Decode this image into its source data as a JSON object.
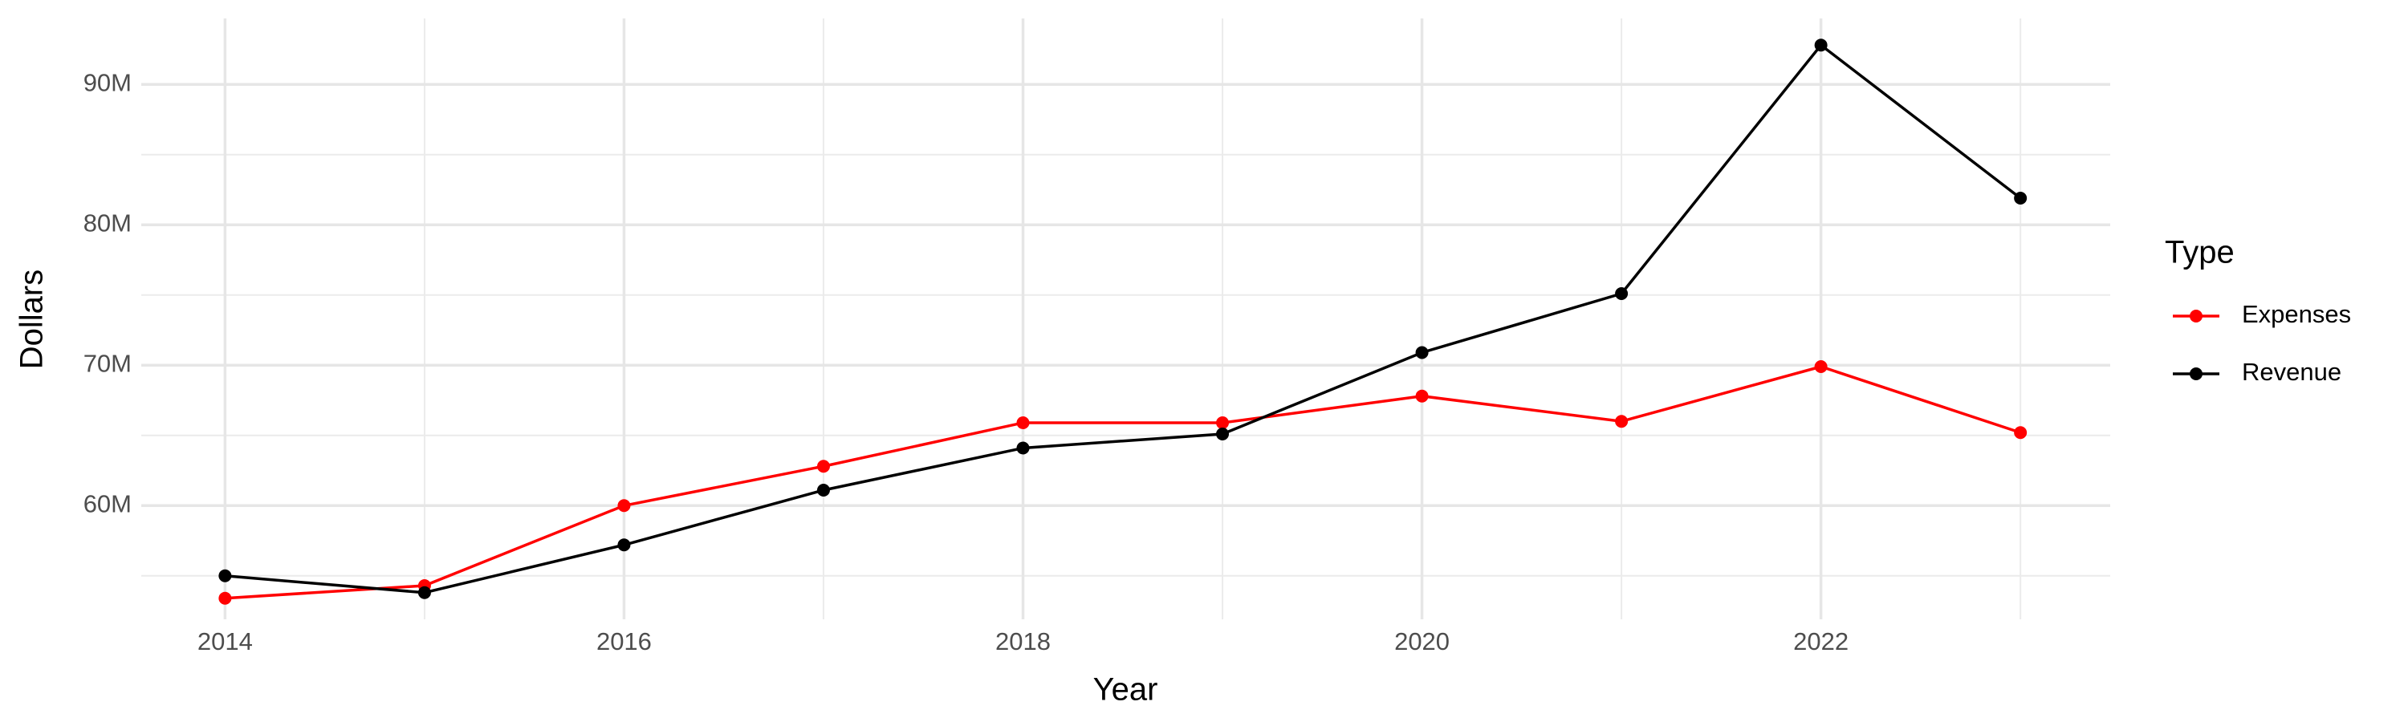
{
  "chart_data": {
    "type": "line",
    "x_label": "Year",
    "y_label": "Dollars",
    "x": [
      2014,
      2015,
      2016,
      2017,
      2018,
      2019,
      2020,
      2021,
      2022,
      2023
    ],
    "series": [
      {
        "name": "Expenses",
        "color": "#ff0000",
        "values": [
          53400000,
          54300000,
          60000000,
          62800000,
          65900000,
          65900000,
          67800000,
          66000000,
          69900000,
          65200000
        ]
      },
      {
        "name": "Revenue",
        "color": "#000000",
        "values": [
          55000000,
          53800000,
          57200000,
          61100000,
          64100000,
          65100000,
          70900000,
          75100000,
          92800000,
          81900000
        ]
      }
    ],
    "xlim": [
      2013.58,
      2023.45
    ],
    "xticks": [
      2014,
      2016,
      2018,
      2020,
      2022
    ],
    "ylim": [
      51900000,
      94700000
    ],
    "yticks": [
      {
        "value": 60000000,
        "label": "60M"
      },
      {
        "value": 70000000,
        "label": "70M"
      },
      {
        "value": 80000000,
        "label": "80M"
      },
      {
        "value": 90000000,
        "label": "90M"
      }
    ],
    "grid": true,
    "legend": "right",
    "legend_title": "Type"
  }
}
